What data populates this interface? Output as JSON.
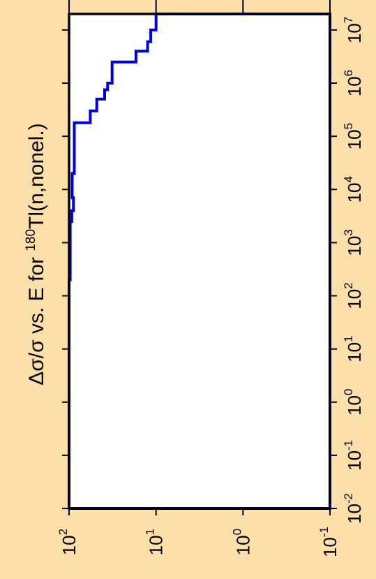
{
  "chart_data": {
    "type": "line",
    "orientation": "rotated-90",
    "title": {
      "prefix": "Δσ/σ vs. E for ",
      "mass_number": "180",
      "suffix": "Tl(n,nonel.)"
    },
    "x_axis": {
      "scale": "log",
      "range": [
        0.01,
        20000000
      ],
      "tick_values": [
        0.01,
        0.1,
        1,
        10,
        100,
        1000,
        10000,
        100000,
        1000000,
        10000000
      ],
      "tick_labels": [
        {
          "base": "10",
          "exp": "-2"
        },
        {
          "base": "10",
          "exp": "-1"
        },
        {
          "base": "10",
          "exp": "0"
        },
        {
          "base": "10",
          "exp": "1"
        },
        {
          "base": "10",
          "exp": "2"
        },
        {
          "base": "10",
          "exp": "3"
        },
        {
          "base": "10",
          "exp": "4"
        },
        {
          "base": "10",
          "exp": "5"
        },
        {
          "base": "10",
          "exp": "6"
        },
        {
          "base": "10",
          "exp": "7"
        }
      ]
    },
    "y_axis": {
      "scale": "log",
      "range": [
        100,
        0.1
      ],
      "tick_values": [
        100,
        10,
        1,
        0.1
      ],
      "tick_labels": [
        {
          "base": "10",
          "exp": "2"
        },
        {
          "base": "10",
          "exp": "1"
        },
        {
          "base": "10",
          "exp": "0"
        },
        {
          "base": "10",
          "exp": "-1"
        }
      ]
    },
    "series": [
      {
        "color": "#0000dd",
        "points": [
          [
            0.01,
            100
          ],
          [
            0.01,
            0.1
          ],
          [
            20000000,
            0.1
          ],
          [
            20000000,
            10
          ],
          [
            10000000,
            10
          ],
          [
            10000000,
            11.5
          ],
          [
            6000000,
            11.5
          ],
          [
            6000000,
            12.5
          ],
          [
            4000000,
            12.5
          ],
          [
            4000000,
            17
          ],
          [
            2500000,
            17
          ],
          [
            2500000,
            32
          ],
          [
            1000000,
            32
          ],
          [
            1000000,
            36
          ],
          [
            750000,
            36
          ],
          [
            750000,
            39
          ],
          [
            500000,
            39
          ],
          [
            500000,
            48
          ],
          [
            300000,
            48
          ],
          [
            300000,
            57
          ],
          [
            180000,
            57
          ],
          [
            180000,
            87
          ],
          [
            20000,
            87
          ],
          [
            20000,
            92
          ],
          [
            7000,
            92
          ],
          [
            7000,
            89
          ],
          [
            4000,
            89
          ],
          [
            4000,
            93
          ],
          [
            2500,
            93
          ],
          [
            2500,
            97
          ],
          [
            200,
            97
          ],
          [
            200,
            100
          ],
          [
            0.01,
            100
          ]
        ]
      }
    ],
    "grid": false,
    "frame_color": "#000000"
  }
}
